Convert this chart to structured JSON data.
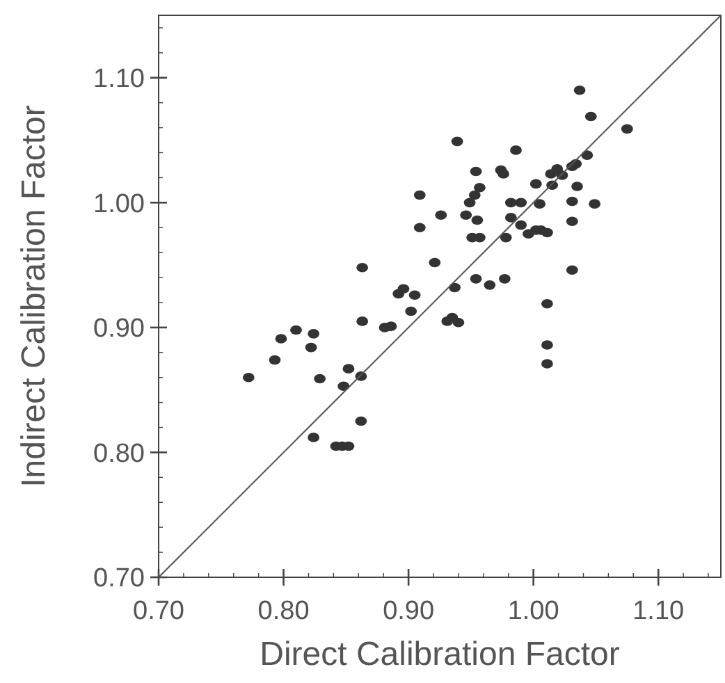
{
  "chart_data": {
    "type": "scatter",
    "xlabel": "Direct Calibration Factor",
    "ylabel": "Indirect Calibration Factor",
    "xlim": [
      0.7,
      1.15
    ],
    "ylim": [
      0.7,
      1.15
    ],
    "xticks": [
      {
        "value": 0.7,
        "label": "0.70"
      },
      {
        "value": 0.72,
        "label": null
      },
      {
        "value": 0.74,
        "label": null
      },
      {
        "value": 0.76,
        "label": null
      },
      {
        "value": 0.78,
        "label": null
      },
      {
        "value": 0.8,
        "label": "0.80"
      },
      {
        "value": 0.82,
        "label": null
      },
      {
        "value": 0.84,
        "label": null
      },
      {
        "value": 0.86,
        "label": null
      },
      {
        "value": 0.88,
        "label": null
      },
      {
        "value": 0.9,
        "label": "0.90"
      },
      {
        "value": 0.92,
        "label": null
      },
      {
        "value": 0.94,
        "label": null
      },
      {
        "value": 0.96,
        "label": null
      },
      {
        "value": 0.98,
        "label": null
      },
      {
        "value": 1.0,
        "label": "1.00"
      },
      {
        "value": 1.02,
        "label": null
      },
      {
        "value": 1.04,
        "label": null
      },
      {
        "value": 1.06,
        "label": null
      },
      {
        "value": 1.08,
        "label": null
      },
      {
        "value": 1.1,
        "label": "1.10"
      },
      {
        "value": 1.12,
        "label": null
      },
      {
        "value": 1.14,
        "label": null
      }
    ],
    "yticks": [
      {
        "value": 0.7,
        "label": "0.70"
      },
      {
        "value": 0.72,
        "label": null
      },
      {
        "value": 0.74,
        "label": null
      },
      {
        "value": 0.76,
        "label": null
      },
      {
        "value": 0.78,
        "label": null
      },
      {
        "value": 0.8,
        "label": "0.80"
      },
      {
        "value": 0.82,
        "label": null
      },
      {
        "value": 0.84,
        "label": null
      },
      {
        "value": 0.86,
        "label": null
      },
      {
        "value": 0.88,
        "label": null
      },
      {
        "value": 0.9,
        "label": "0.90"
      },
      {
        "value": 0.92,
        "label": null
      },
      {
        "value": 0.94,
        "label": null
      },
      {
        "value": 0.96,
        "label": null
      },
      {
        "value": 0.98,
        "label": null
      },
      {
        "value": 1.0,
        "label": "1.00"
      },
      {
        "value": 1.02,
        "label": null
      },
      {
        "value": 1.04,
        "label": null
      },
      {
        "value": 1.06,
        "label": null
      },
      {
        "value": 1.08,
        "label": null
      },
      {
        "value": 1.1,
        "label": "1.10"
      },
      {
        "value": 1.12,
        "label": null
      },
      {
        "value": 1.14,
        "label": null
      }
    ],
    "grid": false,
    "series": [
      {
        "color": "#333333",
        "marker": "circle",
        "x": [
          0.772,
          0.793,
          0.798,
          0.81,
          0.824,
          0.822,
          0.829,
          0.824,
          0.842,
          0.847,
          0.852,
          0.848,
          0.852,
          0.862,
          0.862,
          0.863,
          0.863,
          0.881,
          0.886,
          0.892,
          0.896,
          0.905,
          0.902,
          0.909,
          0.909,
          0.921,
          0.926,
          0.931,
          0.935,
          0.94,
          0.937,
          0.939,
          0.946,
          0.949,
          0.953,
          0.957,
          0.954,
          0.955,
          0.951,
          0.957,
          0.954,
          0.965,
          0.974,
          0.976,
          0.977,
          0.978,
          0.982,
          0.982,
          0.99,
          0.986,
          0.99,
          0.996,
          1.002,
          1.006,
          1.011,
          1.005,
          1.002,
          1.011,
          1.011,
          1.011,
          1.015,
          1.014,
          1.019,
          1.023,
          1.031,
          1.034,
          1.031,
          1.035,
          1.031,
          1.031,
          1.037,
          1.043,
          1.046,
          1.049,
          1.075
        ],
        "values": [
          0.86,
          0.874,
          0.891,
          0.898,
          0.895,
          0.884,
          0.859,
          0.812,
          0.805,
          0.805,
          0.805,
          0.853,
          0.867,
          0.861,
          0.825,
          0.905,
          0.948,
          0.9,
          0.901,
          0.927,
          0.931,
          0.926,
          0.913,
          0.98,
          1.006,
          0.952,
          0.99,
          0.905,
          0.908,
          0.904,
          0.932,
          1.049,
          0.99,
          1.0,
          1.006,
          1.012,
          1.025,
          0.986,
          0.972,
          0.972,
          0.939,
          0.934,
          1.026,
          1.023,
          0.939,
          0.972,
          0.988,
          1.0,
          1.0,
          1.042,
          0.982,
          0.975,
          0.978,
          0.978,
          0.976,
          0.999,
          1.015,
          0.919,
          0.886,
          0.871,
          1.014,
          1.023,
          1.027,
          1.022,
          1.029,
          1.031,
          1.001,
          1.013,
          0.985,
          0.946,
          1.09,
          1.038,
          1.069,
          0.999,
          1.059
        ]
      },
      {
        "type": "line",
        "color": "#555555",
        "marker": "none",
        "line_style": "solid",
        "x": [
          0.7,
          1.15
        ],
        "values": [
          0.7,
          1.15
        ]
      }
    ]
  }
}
